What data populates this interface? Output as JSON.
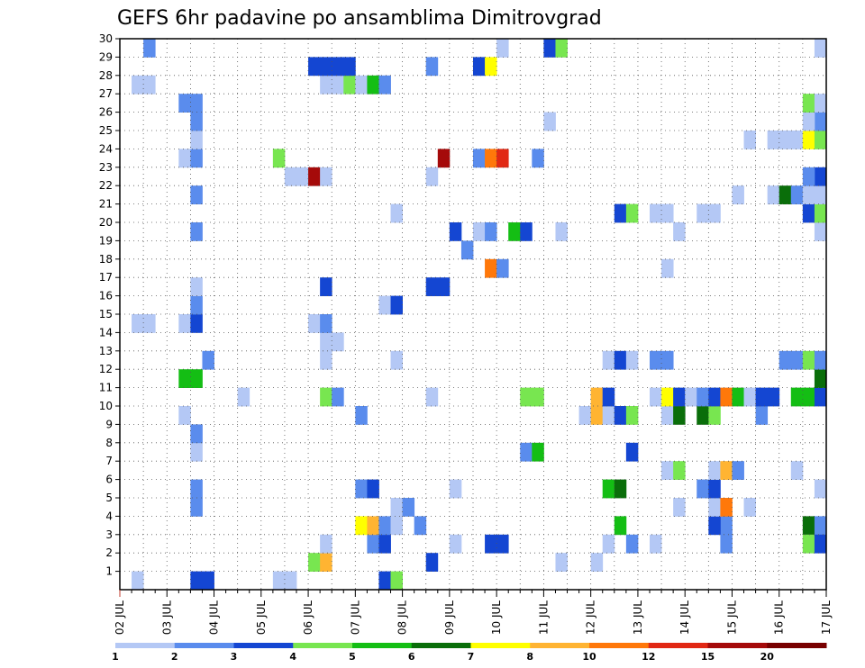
{
  "chart_data": {
    "type": "heatmap",
    "title": "GEFS 6hr padavine po ansamblima Dimitrovgrad",
    "x_tick_labels": [
      "02 JUL",
      "03 JUL",
      "04 JUL",
      "05 JUL",
      "06 JUL",
      "07 JUL",
      "08 JUL",
      "09 JUL",
      "10 JUL",
      "11 JUL",
      "12 JUL",
      "13 JUL",
      "14 JUL",
      "15 JUL",
      "16 JUL",
      "17 JUL"
    ],
    "xlim_steps": [
      0,
      60
    ],
    "y_tick_labels": [
      "1",
      "2",
      "3",
      "4",
      "5",
      "6",
      "7",
      "8",
      "9",
      "10",
      "11",
      "12",
      "13",
      "14",
      "15",
      "16",
      "17",
      "18",
      "19",
      "20",
      "21",
      "22",
      "23",
      "24",
      "25",
      "26",
      "27",
      "28",
      "29",
      "30"
    ],
    "ylim": [
      0,
      30
    ],
    "grid": true,
    "colorbar": {
      "levels": [
        "1",
        "2",
        "3",
        "4",
        "5",
        "6",
        "7",
        "8",
        "10",
        "12",
        "15",
        "20"
      ],
      "colors": [
        "#b4c8f5",
        "#5a8ced",
        "#1446d2",
        "#78e650",
        "#14be14",
        "#0a6e0a",
        "#ffff00",
        "#ffb432",
        "#ff780a",
        "#e12814",
        "#a50a0a",
        "#780000"
      ]
    },
    "cell_encoding": "[time_step_index (6h steps from 02 JUL 00z), ensemble_member, precip_mm]",
    "cells": [
      [
        1,
        0,
        1.5
      ],
      [
        6,
        0,
        3
      ],
      [
        7,
        0,
        3
      ],
      [
        13,
        0,
        1.5
      ],
      [
        14,
        0,
        1.5
      ],
      [
        22,
        0,
        3
      ],
      [
        23,
        0,
        4.5
      ],
      [
        37,
        1,
        1.5
      ],
      [
        40,
        1,
        1.5
      ],
      [
        16,
        1,
        4.5
      ],
      [
        17,
        1,
        9
      ],
      [
        26,
        1,
        3
      ],
      [
        31,
        2,
        3
      ],
      [
        32,
        2,
        3
      ],
      [
        41,
        2,
        1.5
      ],
      [
        43,
        2,
        2.5
      ],
      [
        45,
        2,
        1.5
      ],
      [
        51,
        3,
        2.5
      ],
      [
        50,
        3,
        3
      ],
      [
        58,
        3,
        6
      ],
      [
        59,
        3,
        2.5
      ],
      [
        17,
        2,
        1.5
      ],
      [
        21,
        2,
        2.5
      ],
      [
        22,
        2,
        3
      ],
      [
        28,
        2,
        1.5
      ],
      [
        20,
        3,
        7
      ],
      [
        21,
        3,
        9
      ],
      [
        22,
        3,
        2.5
      ],
      [
        23,
        3,
        1.5
      ],
      [
        25,
        3,
        2.5
      ],
      [
        42,
        3,
        5
      ],
      [
        51,
        2,
        2.5
      ],
      [
        58,
        2,
        4.5
      ],
      [
        59,
        2,
        3.5
      ],
      [
        23,
        4,
        1.5
      ],
      [
        24,
        4,
        2.5
      ],
      [
        47,
        4,
        1.5
      ],
      [
        50,
        4,
        1.5
      ],
      [
        51,
        4,
        11
      ],
      [
        53,
        4,
        1.5
      ],
      [
        6,
        5,
        2.5
      ],
      [
        6,
        4,
        2.5
      ],
      [
        20,
        5,
        2.5
      ],
      [
        21,
        5,
        3.5
      ],
      [
        28,
        5,
        1.5
      ],
      [
        41,
        5,
        5.5
      ],
      [
        42,
        5,
        6.5
      ],
      [
        49,
        5,
        2.5
      ],
      [
        50,
        5,
        3.5
      ],
      [
        59,
        5,
        1.5
      ],
      [
        46,
        6,
        1.5
      ],
      [
        47,
        6,
        4.5
      ],
      [
        50,
        6,
        1.5
      ],
      [
        51,
        6,
        9
      ],
      [
        52,
        6,
        2.5
      ],
      [
        57,
        6,
        1.5
      ],
      [
        6,
        7,
        1.5
      ],
      [
        34,
        7,
        2.5
      ],
      [
        35,
        7,
        5.5
      ],
      [
        43,
        7,
        3.5
      ],
      [
        6,
        8,
        2.5
      ],
      [
        5,
        9,
        1.5
      ],
      [
        20,
        9,
        2.5
      ],
      [
        39,
        9,
        1.5
      ],
      [
        40,
        9,
        9
      ],
      [
        41,
        9,
        1.5
      ],
      [
        42,
        9,
        3.5
      ],
      [
        43,
        9,
        4.5
      ],
      [
        46,
        9,
        1.5
      ],
      [
        47,
        9,
        6.5
      ],
      [
        49,
        9,
        6.5
      ],
      [
        50,
        9,
        4.5
      ],
      [
        54,
        9,
        2.5
      ],
      [
        10,
        10,
        1.5
      ],
      [
        17,
        10,
        4.5
      ],
      [
        18,
        10,
        2.5
      ],
      [
        26,
        10,
        1.5
      ],
      [
        34,
        10,
        4.5
      ],
      [
        35,
        10,
        4.5
      ],
      [
        40,
        10,
        9
      ],
      [
        41,
        10,
        3.5
      ],
      [
        45,
        10,
        1.5
      ],
      [
        46,
        10,
        7
      ],
      [
        47,
        10,
        3.5
      ],
      [
        48,
        10,
        1.5
      ],
      [
        49,
        10,
        2.5
      ],
      [
        50,
        10,
        3.5
      ],
      [
        51,
        10,
        11
      ],
      [
        52,
        10,
        5
      ],
      [
        53,
        10,
        1.5
      ],
      [
        54,
        10,
        3.5
      ],
      [
        55,
        10,
        3.5
      ],
      [
        57,
        10,
        5.5
      ],
      [
        58,
        10,
        5.5
      ],
      [
        59,
        10,
        3.5
      ],
      [
        5,
        11,
        5.5
      ],
      [
        6,
        11,
        5.5
      ],
      [
        59,
        11,
        6.5
      ],
      [
        7,
        12,
        2.5
      ],
      [
        17,
        12,
        1.5
      ],
      [
        23,
        12,
        1.5
      ],
      [
        41,
        12,
        1.5
      ],
      [
        42,
        12,
        3.5
      ],
      [
        43,
        12,
        1.5
      ],
      [
        45,
        12,
        2.5
      ],
      [
        46,
        12,
        2.5
      ],
      [
        56,
        12,
        2.5
      ],
      [
        57,
        12,
        2.5
      ],
      [
        58,
        12,
        4.5
      ],
      [
        59,
        12,
        2.5
      ],
      [
        17,
        13,
        1.5
      ],
      [
        18,
        13,
        1.5
      ],
      [
        1,
        14,
        1.5
      ],
      [
        2,
        14,
        1.5
      ],
      [
        5,
        14,
        1.5
      ],
      [
        6,
        14,
        3.5
      ],
      [
        16,
        14,
        1.5
      ],
      [
        17,
        14,
        2.5
      ],
      [
        6,
        15,
        2.5
      ],
      [
        22,
        15,
        1.5
      ],
      [
        23,
        15,
        3.5
      ],
      [
        6,
        16,
        1.5
      ],
      [
        17,
        16,
        3.5
      ],
      [
        26,
        16,
        3.5
      ],
      [
        27,
        16,
        3.5
      ],
      [
        31,
        17,
        10.5
      ],
      [
        32,
        17,
        2.5
      ],
      [
        46,
        17,
        1.5
      ],
      [
        29,
        18,
        2.5
      ],
      [
        6,
        19,
        2.5
      ],
      [
        28,
        19,
        3.5
      ],
      [
        30,
        19,
        1.5
      ],
      [
        31,
        19,
        2.5
      ],
      [
        33,
        19,
        5.5
      ],
      [
        34,
        19,
        3.5
      ],
      [
        37,
        19,
        1.5
      ],
      [
        47,
        19,
        1.5
      ],
      [
        59,
        19,
        1.5
      ],
      [
        23,
        20,
        1.5
      ],
      [
        42,
        20,
        3.5
      ],
      [
        43,
        20,
        4.5
      ],
      [
        45,
        20,
        1.5
      ],
      [
        46,
        20,
        1.5
      ],
      [
        49,
        20,
        1.5
      ],
      [
        50,
        20,
        1.5
      ],
      [
        58,
        20,
        3.5
      ],
      [
        59,
        20,
        4.5
      ],
      [
        6,
        21,
        2.5
      ],
      [
        52,
        21,
        1.5
      ],
      [
        55,
        21,
        1.5
      ],
      [
        56,
        21,
        6.5
      ],
      [
        57,
        21,
        2.5
      ],
      [
        58,
        21,
        1.5
      ],
      [
        59,
        21,
        1.5
      ],
      [
        14,
        22,
        1.5
      ],
      [
        15,
        22,
        1.5
      ],
      [
        16,
        22,
        16
      ],
      [
        17,
        22,
        1.5
      ],
      [
        26,
        22,
        1.5
      ],
      [
        59,
        22,
        3.5
      ],
      [
        58,
        22,
        2.5
      ],
      [
        5,
        23,
        1.5
      ],
      [
        6,
        23,
        2.5
      ],
      [
        13,
        23,
        4.5
      ],
      [
        27,
        23,
        16
      ],
      [
        30,
        23,
        2.5
      ],
      [
        31,
        23,
        10.5
      ],
      [
        32,
        23,
        13
      ],
      [
        35,
        23,
        2.5
      ],
      [
        6,
        24,
        1.5
      ],
      [
        53,
        24,
        1.5
      ],
      [
        55,
        24,
        1.5
      ],
      [
        56,
        24,
        1.5
      ],
      [
        57,
        24,
        1.5
      ],
      [
        58,
        24,
        7
      ],
      [
        59,
        24,
        4.5
      ],
      [
        6,
        25,
        2.5
      ],
      [
        36,
        25,
        1.5
      ],
      [
        59,
        25,
        2.5
      ],
      [
        58,
        25,
        1.5
      ],
      [
        5,
        26,
        2.5
      ],
      [
        6,
        26,
        2.5
      ],
      [
        58,
        26,
        4.5
      ],
      [
        59,
        26,
        1.5
      ],
      [
        1,
        27,
        1.5
      ],
      [
        2,
        27,
        1.5
      ],
      [
        17,
        27,
        1.5
      ],
      [
        18,
        27,
        1.5
      ],
      [
        19,
        27,
        4.5
      ],
      [
        20,
        27,
        1.5
      ],
      [
        21,
        27,
        5.5
      ],
      [
        22,
        27,
        2.5
      ],
      [
        16,
        28,
        3.5
      ],
      [
        17,
        28,
        3.5
      ],
      [
        18,
        28,
        3.5
      ],
      [
        19,
        28,
        3.5
      ],
      [
        26,
        28,
        2.5
      ],
      [
        30,
        28,
        3.5
      ],
      [
        31,
        28,
        7
      ],
      [
        2,
        29,
        2.5
      ],
      [
        32,
        29,
        1.5
      ],
      [
        36,
        29,
        3.5
      ],
      [
        37,
        29,
        4.5
      ],
      [
        59,
        29,
        1.5
      ]
    ]
  }
}
